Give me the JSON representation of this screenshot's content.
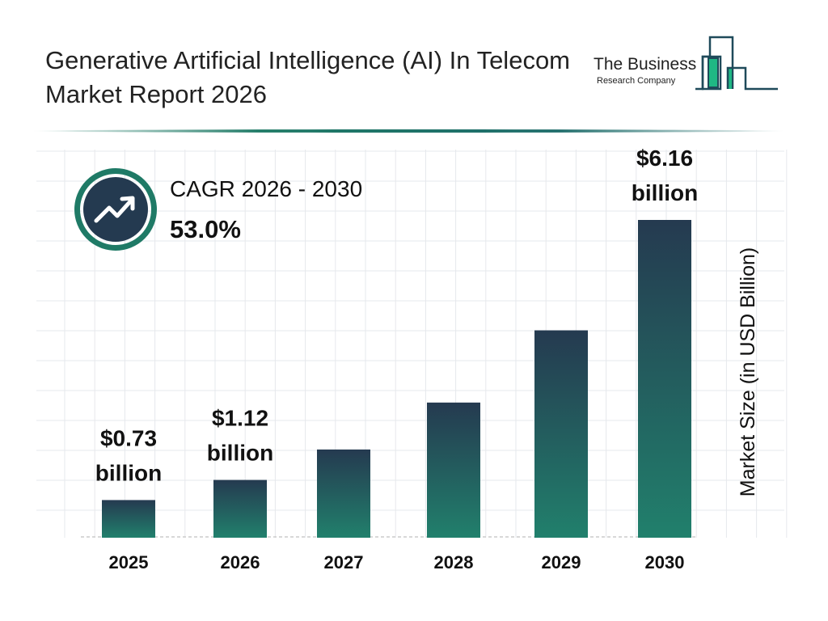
{
  "title": "Generative Artificial Intelligence (AI) In Telecom Market Report 2026",
  "logo": {
    "line1": "The Business",
    "line2": "Research Company",
    "colors": {
      "dark": "#1f4a5a",
      "green": "#1fb884"
    }
  },
  "cagr": {
    "label": "CAGR 2026 - 2030",
    "value": "53.0%",
    "icon": "trending-up-icon"
  },
  "chart_data": {
    "type": "bar",
    "categories": [
      "2025",
      "2026",
      "2027",
      "2028",
      "2029",
      "2030"
    ],
    "values": [
      0.73,
      1.12,
      1.71,
      2.62,
      4.02,
      6.16
    ],
    "data_labels": [
      {
        "index": 0,
        "amount": "$0.73",
        "unit": "billion"
      },
      {
        "index": 1,
        "amount": "$1.12",
        "unit": "billion"
      },
      {
        "index": 5,
        "amount": "$6.16",
        "unit": "billion"
      }
    ],
    "xlabel": "",
    "ylabel": "Market Size (in USD Billion)",
    "ylim": [
      0,
      6.16
    ],
    "grid": true,
    "bar_gradient": [
      "#253a50",
      "#21806c"
    ]
  }
}
